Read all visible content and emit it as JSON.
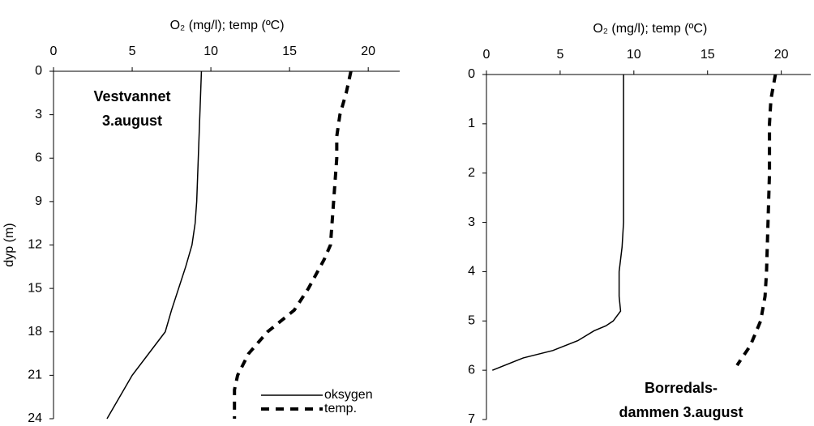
{
  "chart_data": [
    {
      "type": "line",
      "x_label": "O₂ (mg/l); temp (ºC)",
      "y_label": "dyp (m)",
      "annotation": [
        "Vestvannet",
        "3.august"
      ],
      "xlim": [
        0,
        22
      ],
      "xticks": [
        0,
        5,
        10,
        15,
        20
      ],
      "ylim": [
        0,
        24
      ],
      "yticks": [
        0,
        3,
        6,
        9,
        12,
        15,
        18,
        21,
        24
      ],
      "y_inverted": true,
      "legend": "bottom-right",
      "series": [
        {
          "name": "oksygen",
          "color": "#000000",
          "dashed": false,
          "x": [
            9.4,
            9.3,
            9.2,
            9.1,
            9.0,
            8.8,
            8.4,
            7.5,
            7.1,
            6.4,
            5.0,
            3.4
          ],
          "y": [
            0,
            3,
            6,
            9,
            10.5,
            12,
            13.5,
            16.5,
            18,
            19,
            21,
            24
          ]
        },
        {
          "name": "temp.",
          "color": "#000000",
          "dashed": true,
          "x": [
            18.9,
            18.6,
            18.2,
            18.0,
            18.0,
            17.8,
            17.6,
            17.2,
            16.2,
            15.3,
            13.6,
            12.4,
            11.7,
            11.5,
            11.5
          ],
          "y": [
            0,
            1.5,
            3,
            4.5,
            6,
            9,
            12,
            13,
            15,
            16.5,
            18,
            19.5,
            21,
            22,
            24
          ]
        }
      ]
    },
    {
      "type": "line",
      "x_label": "O₂ (mg/l); temp (ºC)",
      "annotation": [
        "Borredals-",
        "dammen 3.august"
      ],
      "xlim": [
        0,
        22
      ],
      "xticks": [
        0,
        5,
        10,
        15,
        20
      ],
      "ylim": [
        0,
        7
      ],
      "yticks": [
        0,
        1,
        2,
        3,
        4,
        5,
        6,
        7
      ],
      "y_inverted": true,
      "series": [
        {
          "color": "#000000",
          "dashed": false,
          "x": [
            9.3,
            9.3,
            9.2,
            9.0,
            9.0,
            9.1,
            8.6,
            8.1,
            7.3,
            6.2,
            4.5,
            2.5,
            0.4
          ],
          "y": [
            0,
            3,
            3.5,
            4,
            4.5,
            4.8,
            5.0,
            5.1,
            5.2,
            5.4,
            5.6,
            5.75,
            6.0
          ]
        },
        {
          "color": "#000000",
          "dashed": true,
          "x": [
            19.6,
            19.3,
            19.2,
            19.2,
            19.1,
            19.0,
            18.9,
            18.6,
            17.9,
            17.0
          ],
          "y": [
            0,
            0.5,
            1,
            2,
            3,
            4,
            4.5,
            5,
            5.5,
            5.9
          ]
        }
      ]
    }
  ]
}
